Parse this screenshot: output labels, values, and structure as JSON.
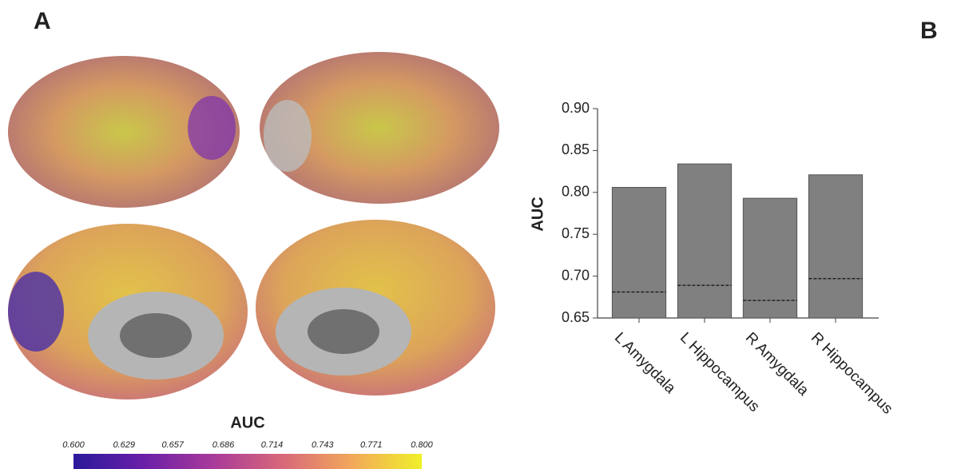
{
  "panel_a": {
    "label": "A",
    "colorbar": {
      "title": "AUC",
      "clim": [
        0.6,
        0.8
      ],
      "ticks": [
        {
          "value": 0.6,
          "label": "0.600"
        },
        {
          "value": 0.629,
          "label": "0.629"
        },
        {
          "value": 0.657,
          "label": "0.657"
        },
        {
          "value": 0.686,
          "label": "0.686"
        },
        {
          "value": 0.714,
          "label": "0.714"
        },
        {
          "value": 0.743,
          "label": "0.743"
        },
        {
          "value": 0.771,
          "label": "0.771"
        },
        {
          "value": 0.8,
          "label": "0.800"
        }
      ]
    }
  },
  "chart_data": {
    "type": "bar",
    "panel_label": "B",
    "y_label": "AUC",
    "categories": [
      "L Amygdala",
      "L Hippocampus",
      "R Amygdala",
      "R Hippocampus"
    ],
    "values": [
      0.806,
      0.834,
      0.793,
      0.821
    ],
    "reference_values": [
      0.681,
      0.689,
      0.671,
      0.697
    ],
    "color": "#808080",
    "ylim": [
      0.65,
      0.9
    ],
    "yticks": [
      {
        "value": 0.65,
        "label": "0.65"
      },
      {
        "value": 0.7,
        "label": "0.70"
      },
      {
        "value": 0.75,
        "label": "0.75"
      },
      {
        "value": 0.8,
        "label": "0.80"
      },
      {
        "value": 0.85,
        "label": "0.85"
      },
      {
        "value": 0.9,
        "label": "0.90"
      }
    ],
    "grid": false
  }
}
